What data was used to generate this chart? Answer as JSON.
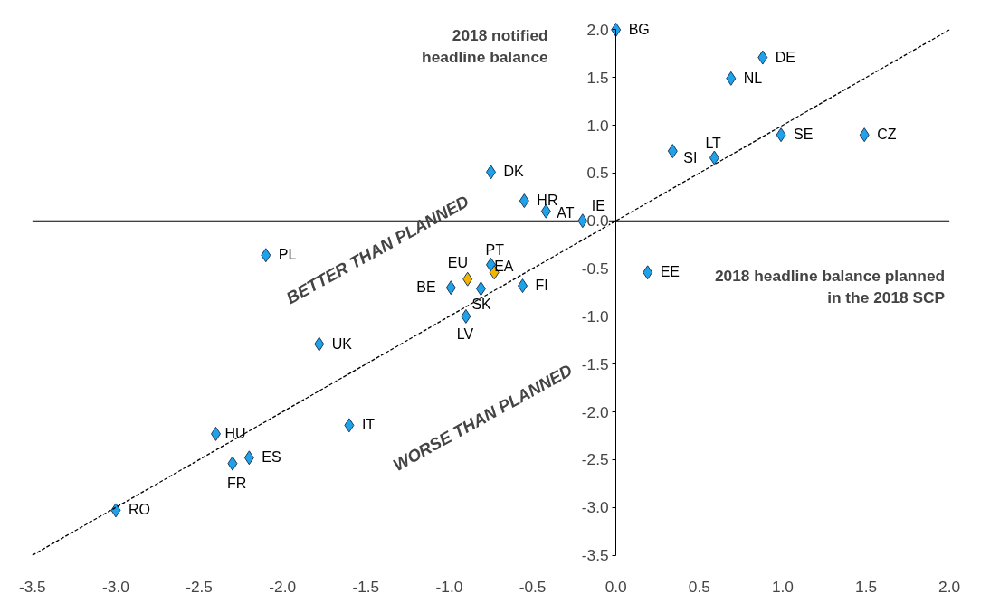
{
  "chart_data": {
    "type": "scatter",
    "xlabel": "2018 headline balance planned in the 2018 SCP",
    "ylabel": "2018 notified headline balance",
    "xlim": [
      -3.5,
      2.0
    ],
    "ylim": [
      -3.5,
      2.0
    ],
    "xticks": [
      {
        "value": -3.5,
        "label": "-3.5"
      },
      {
        "value": -3.0,
        "label": "-3.0"
      },
      {
        "value": -2.5,
        "label": "-2.5"
      },
      {
        "value": -2.0,
        "label": "-2.0"
      },
      {
        "value": -1.5,
        "label": "-1.5"
      },
      {
        "value": -1.0,
        "label": "-1.0"
      },
      {
        "value": -0.5,
        "label": "-0.5"
      },
      {
        "value": 0.0,
        "label": "0.0"
      },
      {
        "value": 0.5,
        "label": "0.5"
      },
      {
        "value": 1.0,
        "label": "1.0"
      },
      {
        "value": 1.5,
        "label": "1.5"
      },
      {
        "value": 2.0,
        "label": "2.0"
      }
    ],
    "yticks": [
      {
        "value": -3.5,
        "label": "-3.5"
      },
      {
        "value": -3.0,
        "label": "-3.0"
      },
      {
        "value": -2.5,
        "label": "-2.5"
      },
      {
        "value": -2.0,
        "label": "-2.0"
      },
      {
        "value": -1.5,
        "label": "-1.5"
      },
      {
        "value": -1.0,
        "label": "-1.0"
      },
      {
        "value": -0.5,
        "label": "-0.5"
      },
      {
        "value": 0.0,
        "label": "0.0"
      },
      {
        "value": 0.5,
        "label": "0.5"
      },
      {
        "value": 1.0,
        "label": "1.0"
      },
      {
        "value": 1.5,
        "label": "1.5"
      },
      {
        "value": 2.0,
        "label": "2.0"
      }
    ],
    "grid": false,
    "marker": "diamond",
    "ref_lines": [
      {
        "axis": "y",
        "value": 0.0,
        "color": "#000000"
      }
    ],
    "series": [
      {
        "color": "#1fa2e8",
        "x": [
          0.0,
          0.88,
          0.69,
          0.99,
          1.49,
          0.34,
          0.59,
          -0.75,
          -0.55,
          -0.42,
          -0.2,
          -2.1,
          -0.75,
          -0.81,
          -0.99,
          -0.56,
          -0.9,
          0.19,
          -1.78,
          -1.6,
          -2.4,
          -2.2,
          -2.3,
          -3.0
        ],
        "values": [
          2.0,
          1.71,
          1.49,
          0.9,
          0.9,
          0.73,
          0.66,
          0.51,
          0.21,
          0.1,
          0.0,
          -0.36,
          -0.46,
          -0.71,
          -0.7,
          -0.68,
          -1.0,
          -0.54,
          -1.29,
          -2.14,
          -2.23,
          -2.48,
          -2.54,
          -3.03
        ]
      },
      {
        "color": "#f5b400",
        "x": [
          -0.89,
          -0.73
        ],
        "values": [
          -0.61,
          -0.54
        ]
      },
      {
        "type": "line",
        "color": "#000000",
        "line_style": "dotted",
        "marker": "none",
        "x": [
          -3.5,
          2.0
        ],
        "values": [
          -3.5,
          2.0
        ]
      }
    ],
    "annotations": [
      {
        "text": "BG",
        "x": 0.0,
        "y": 2.0
      },
      {
        "text": "DE",
        "x": 0.88,
        "y": 1.71
      },
      {
        "text": "NL",
        "x": 0.69,
        "y": 1.49
      },
      {
        "text": "SE",
        "x": 0.99,
        "y": 0.9
      },
      {
        "text": "CZ",
        "x": 1.49,
        "y": 0.9
      },
      {
        "text": "SI",
        "x": 0.34,
        "y": 0.73
      },
      {
        "text": "LT",
        "x": 0.59,
        "y": 0.66
      },
      {
        "text": "DK",
        "x": -0.75,
        "y": 0.51
      },
      {
        "text": "HR",
        "x": -0.55,
        "y": 0.21
      },
      {
        "text": "AT",
        "x": -0.42,
        "y": 0.1
      },
      {
        "text": "IE",
        "x": -0.2,
        "y": 0.0
      },
      {
        "text": "PL",
        "x": -2.1,
        "y": -0.36
      },
      {
        "text": "PT",
        "x": -0.75,
        "y": -0.46
      },
      {
        "text": "SK",
        "x": -0.81,
        "y": -0.71
      },
      {
        "text": "BE",
        "x": -0.99,
        "y": -0.7
      },
      {
        "text": "FI",
        "x": -0.56,
        "y": -0.68
      },
      {
        "text": "LV",
        "x": -0.9,
        "y": -1.0
      },
      {
        "text": "EE",
        "x": 0.19,
        "y": -0.54
      },
      {
        "text": "UK",
        "x": -1.78,
        "y": -1.29
      },
      {
        "text": "IT",
        "x": -1.6,
        "y": -2.14
      },
      {
        "text": "HU",
        "x": -2.4,
        "y": -2.23
      },
      {
        "text": "ES",
        "x": -2.2,
        "y": -2.48
      },
      {
        "text": "FR",
        "x": -2.3,
        "y": -2.54
      },
      {
        "text": "RO",
        "x": -3.0,
        "y": -3.03
      },
      {
        "text": "EU",
        "x": -0.89,
        "y": -0.61
      },
      {
        "text": "EA",
        "x": -0.73,
        "y": -0.54
      },
      "BETTER THAN PLANNED",
      "WORSE THAN PLANNED"
    ]
  }
}
